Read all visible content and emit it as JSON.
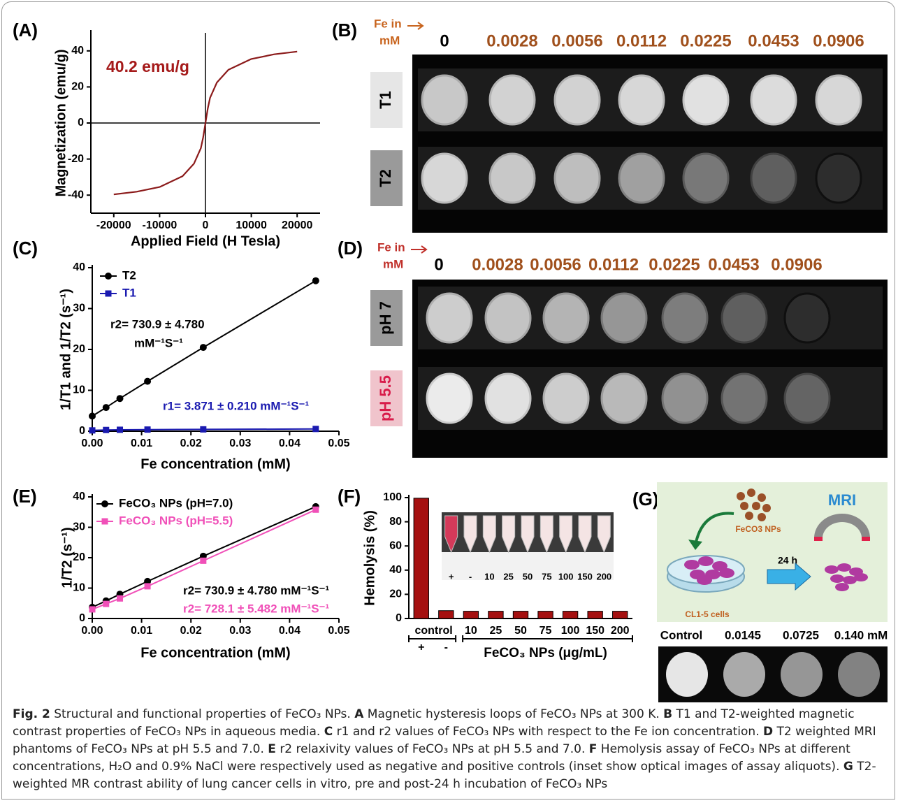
{
  "panel_labels": [
    "(A)",
    "(B)",
    "(C)",
    "(D)",
    "(E)",
    "(F)",
    "(G)"
  ],
  "chart_data": [
    {
      "type": "line",
      "xlabel": "Applied Field (H Tesla)",
      "ylabel": "Magnetization (emu/g)",
      "x": [
        -20000,
        -15000,
        -10000,
        -5000,
        -2500,
        -1000,
        -500,
        0,
        500,
        1000,
        2500,
        5000,
        10000,
        15000,
        20000
      ],
      "series": [
        {
          "color": "#8b1a1a",
          "values": [
            -39.6,
            -38.1,
            -35.5,
            -29.5,
            -22.5,
            -14,
            -8,
            0,
            8,
            14,
            22.5,
            29.5,
            35.5,
            38.1,
            39.6
          ]
        }
      ],
      "xlim": [
        -25000,
        25000
      ],
      "xticks": [
        -20000,
        -10000,
        0,
        10000,
        20000
      ],
      "ylim": [
        -50,
        50
      ],
      "yticks": [
        -40,
        -20,
        0,
        20,
        40
      ],
      "zero_lines": true,
      "annotations": [
        {
          "text": "40.2 emu/g",
          "color": "#a51a1a"
        }
      ]
    },
    {
      "type": "line",
      "xlabel": "Fe concentration (mM)",
      "ylabel": "1/T1 and 1/T2 (s⁻¹)",
      "x": [
        0,
        0.0028,
        0.0056,
        0.0112,
        0.0225,
        0.0453
      ],
      "series": [
        {
          "name": "T2",
          "color": "#000000",
          "marker": "circle",
          "values": [
            3.7,
            5.8,
            8.0,
            12.2,
            20.5,
            36.8
          ]
        },
        {
          "name": "T1",
          "color": "#1a1ab0",
          "marker": "square",
          "values": [
            0.2,
            0.3,
            0.35,
            0.4,
            0.45,
            0.55
          ]
        }
      ],
      "xlim": [
        0,
        0.05
      ],
      "xticks": [
        {
          "value": 0,
          "label": "0.00"
        },
        0.01,
        0.02,
        0.03,
        0.04,
        0.05
      ],
      "ylim": [
        0,
        40
      ],
      "yticks": [
        0,
        10,
        20,
        30,
        40
      ],
      "legend": "upper left",
      "annotations": [
        {
          "text": "r2= 730.9 ± 4.780",
          "color": "#000000"
        },
        {
          "text": "mM⁻¹S⁻¹",
          "color": "#000000"
        },
        {
          "text": "r1= 3.871 ± 0.210 mM⁻¹S⁻¹",
          "color": "#1a1ab0"
        }
      ]
    },
    {
      "type": "line",
      "xlabel": "Fe concentration (mM)",
      "ylabel": "1/T2 (s⁻¹)",
      "x": [
        0,
        0.0028,
        0.0056,
        0.0112,
        0.0225,
        0.0453
      ],
      "series": [
        {
          "name": "FeCO₃ NPs (pH=7.0)",
          "color": "#000000",
          "marker": "circle",
          "values": [
            3.7,
            5.8,
            8.0,
            12.2,
            20.5,
            36.8
          ]
        },
        {
          "name": "FeCO₃ NPs (pH=5.5)",
          "color": "#f050b8",
          "marker": "square",
          "values": [
            3.0,
            4.8,
            6.6,
            10.6,
            19.0,
            35.8
          ]
        }
      ],
      "xlim": [
        0,
        0.05
      ],
      "xticks": [
        {
          "value": 0,
          "label": "0.00"
        },
        0.01,
        0.02,
        0.03,
        0.04,
        0.05
      ],
      "ylim": [
        0,
        40
      ],
      "yticks": [
        0,
        10,
        20,
        30,
        40
      ],
      "legend": "upper left",
      "annotations": [
        {
          "text": "r2= 730.9 ± 4.780 mM⁻¹S⁻¹",
          "color": "#000000"
        },
        {
          "text": "r2= 728.1 ± 5.482 mM⁻¹S⁻¹",
          "color": "#f050b8"
        }
      ]
    },
    {
      "type": "bar",
      "ylabel": "Hemolysis (%)",
      "categories": [
        "+",
        "-",
        "10",
        "25",
        "50",
        "75",
        "100",
        "150",
        "200"
      ],
      "values": [
        99.5,
        6.5,
        6,
        6,
        6,
        6,
        6,
        6,
        6
      ],
      "color": "#a51010",
      "ylim": [
        0,
        100
      ],
      "yticks": [
        0,
        20,
        40,
        60,
        80,
        100
      ],
      "group_labels": [
        "control",
        "FeCO₃ NPs (μg/mL)"
      ],
      "inset_labels": [
        "+",
        "-",
        "10",
        "25",
        "50",
        "75",
        "100",
        "150",
        "200"
      ]
    }
  ],
  "mri_panels": [
    {
      "header": [
        "Fe in",
        "mM"
      ],
      "concentrations": [
        "0",
        "0.0028",
        "0.0056",
        "0.0112",
        "0.0225",
        "0.0453",
        "0.0906"
      ],
      "rows": [
        "T1",
        "T2"
      ]
    },
    {
      "header": [
        "Fe in",
        "mM"
      ],
      "concentrations": [
        "0",
        "0.0028",
        "0.0056",
        "0.0112",
        "0.0225",
        "0.0453",
        "0.0906"
      ],
      "rows": [
        "pH 7",
        "pH 5.5"
      ]
    }
  ],
  "panel_g": {
    "mri": "MRI",
    "particles": "FeCO3 NPs",
    "time": "24 h",
    "cells": "CL1-5 cells",
    "labels": [
      "Control",
      "0.0145",
      "0.0725",
      "0.140 mM"
    ]
  },
  "caption": {
    "label": "Fig. 2",
    "intro": "Structural and functional properties of FeCO₃ NPs.",
    "items": [
      {
        "key": "A",
        "text": "Magnetic hysteresis loops of FeCO₃ NPs at 300 K."
      },
      {
        "key": "B",
        "text": "T1 and T2-weighted magnetic contrast properties of FeCO₃ NPs in aqueous media."
      },
      {
        "key": "C",
        "text": "r1 and r2 values of FeCO₃ NPs with respect to the Fe ion concentration."
      },
      {
        "key": "D",
        "text": "T2 weighted MRI phantoms of FeCO₃ NPs at pH 5.5 and 7.0."
      },
      {
        "key": "E",
        "text": "r2 relaxivity values of FeCO₃ NPs at pH 5.5 and 7.0."
      },
      {
        "key": "F",
        "text": "Hemolysis assay of FeCO₃ NPs at different concentrations, H₂O and 0.9% NaCl were respectively used as negative and positive controls (inset show optical images of assay aliquots)."
      },
      {
        "key": "G",
        "text": "T2-weighted MR contrast ability of lung cancer cells in vitro, pre and post-24 h incubation of FeCO₃ NPs"
      }
    ]
  }
}
